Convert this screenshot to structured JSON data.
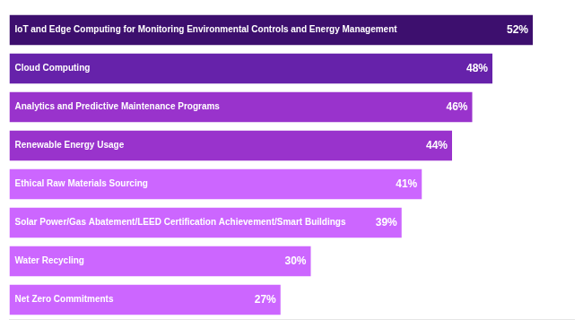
{
  "chart_data": {
    "type": "bar",
    "orientation": "horizontal",
    "categories": [
      "Net Zero Commitments",
      "Water Recycling",
      "Solar Power/Gas Abatement/LEED Certification Achievement/Smart Buildings",
      "Ethical Raw Materials Sourcing",
      "Renewable Energy Usage",
      "Analytics and Predictive Maintenance Programs",
      "Cloud Computing",
      "IoT and Edge Computing for Monitoring Environmental Controls and Energy Management"
    ],
    "values": [
      27,
      30,
      39,
      41,
      44,
      46,
      48,
      52
    ],
    "value_labels": [
      "27%",
      "30%",
      "39%",
      "41%",
      "44%",
      "46%",
      "48%",
      "52%"
    ],
    "colors": [
      "#cc66ff",
      "#cc66ff",
      "#cc66ff",
      "#cc66ff",
      "#9933cc",
      "#9933cc",
      "#6622aa",
      "#3d0f6e"
    ],
    "xlim": [
      0,
      56
    ],
    "grid": false,
    "tick_labels": false,
    "data_labels": true
  }
}
